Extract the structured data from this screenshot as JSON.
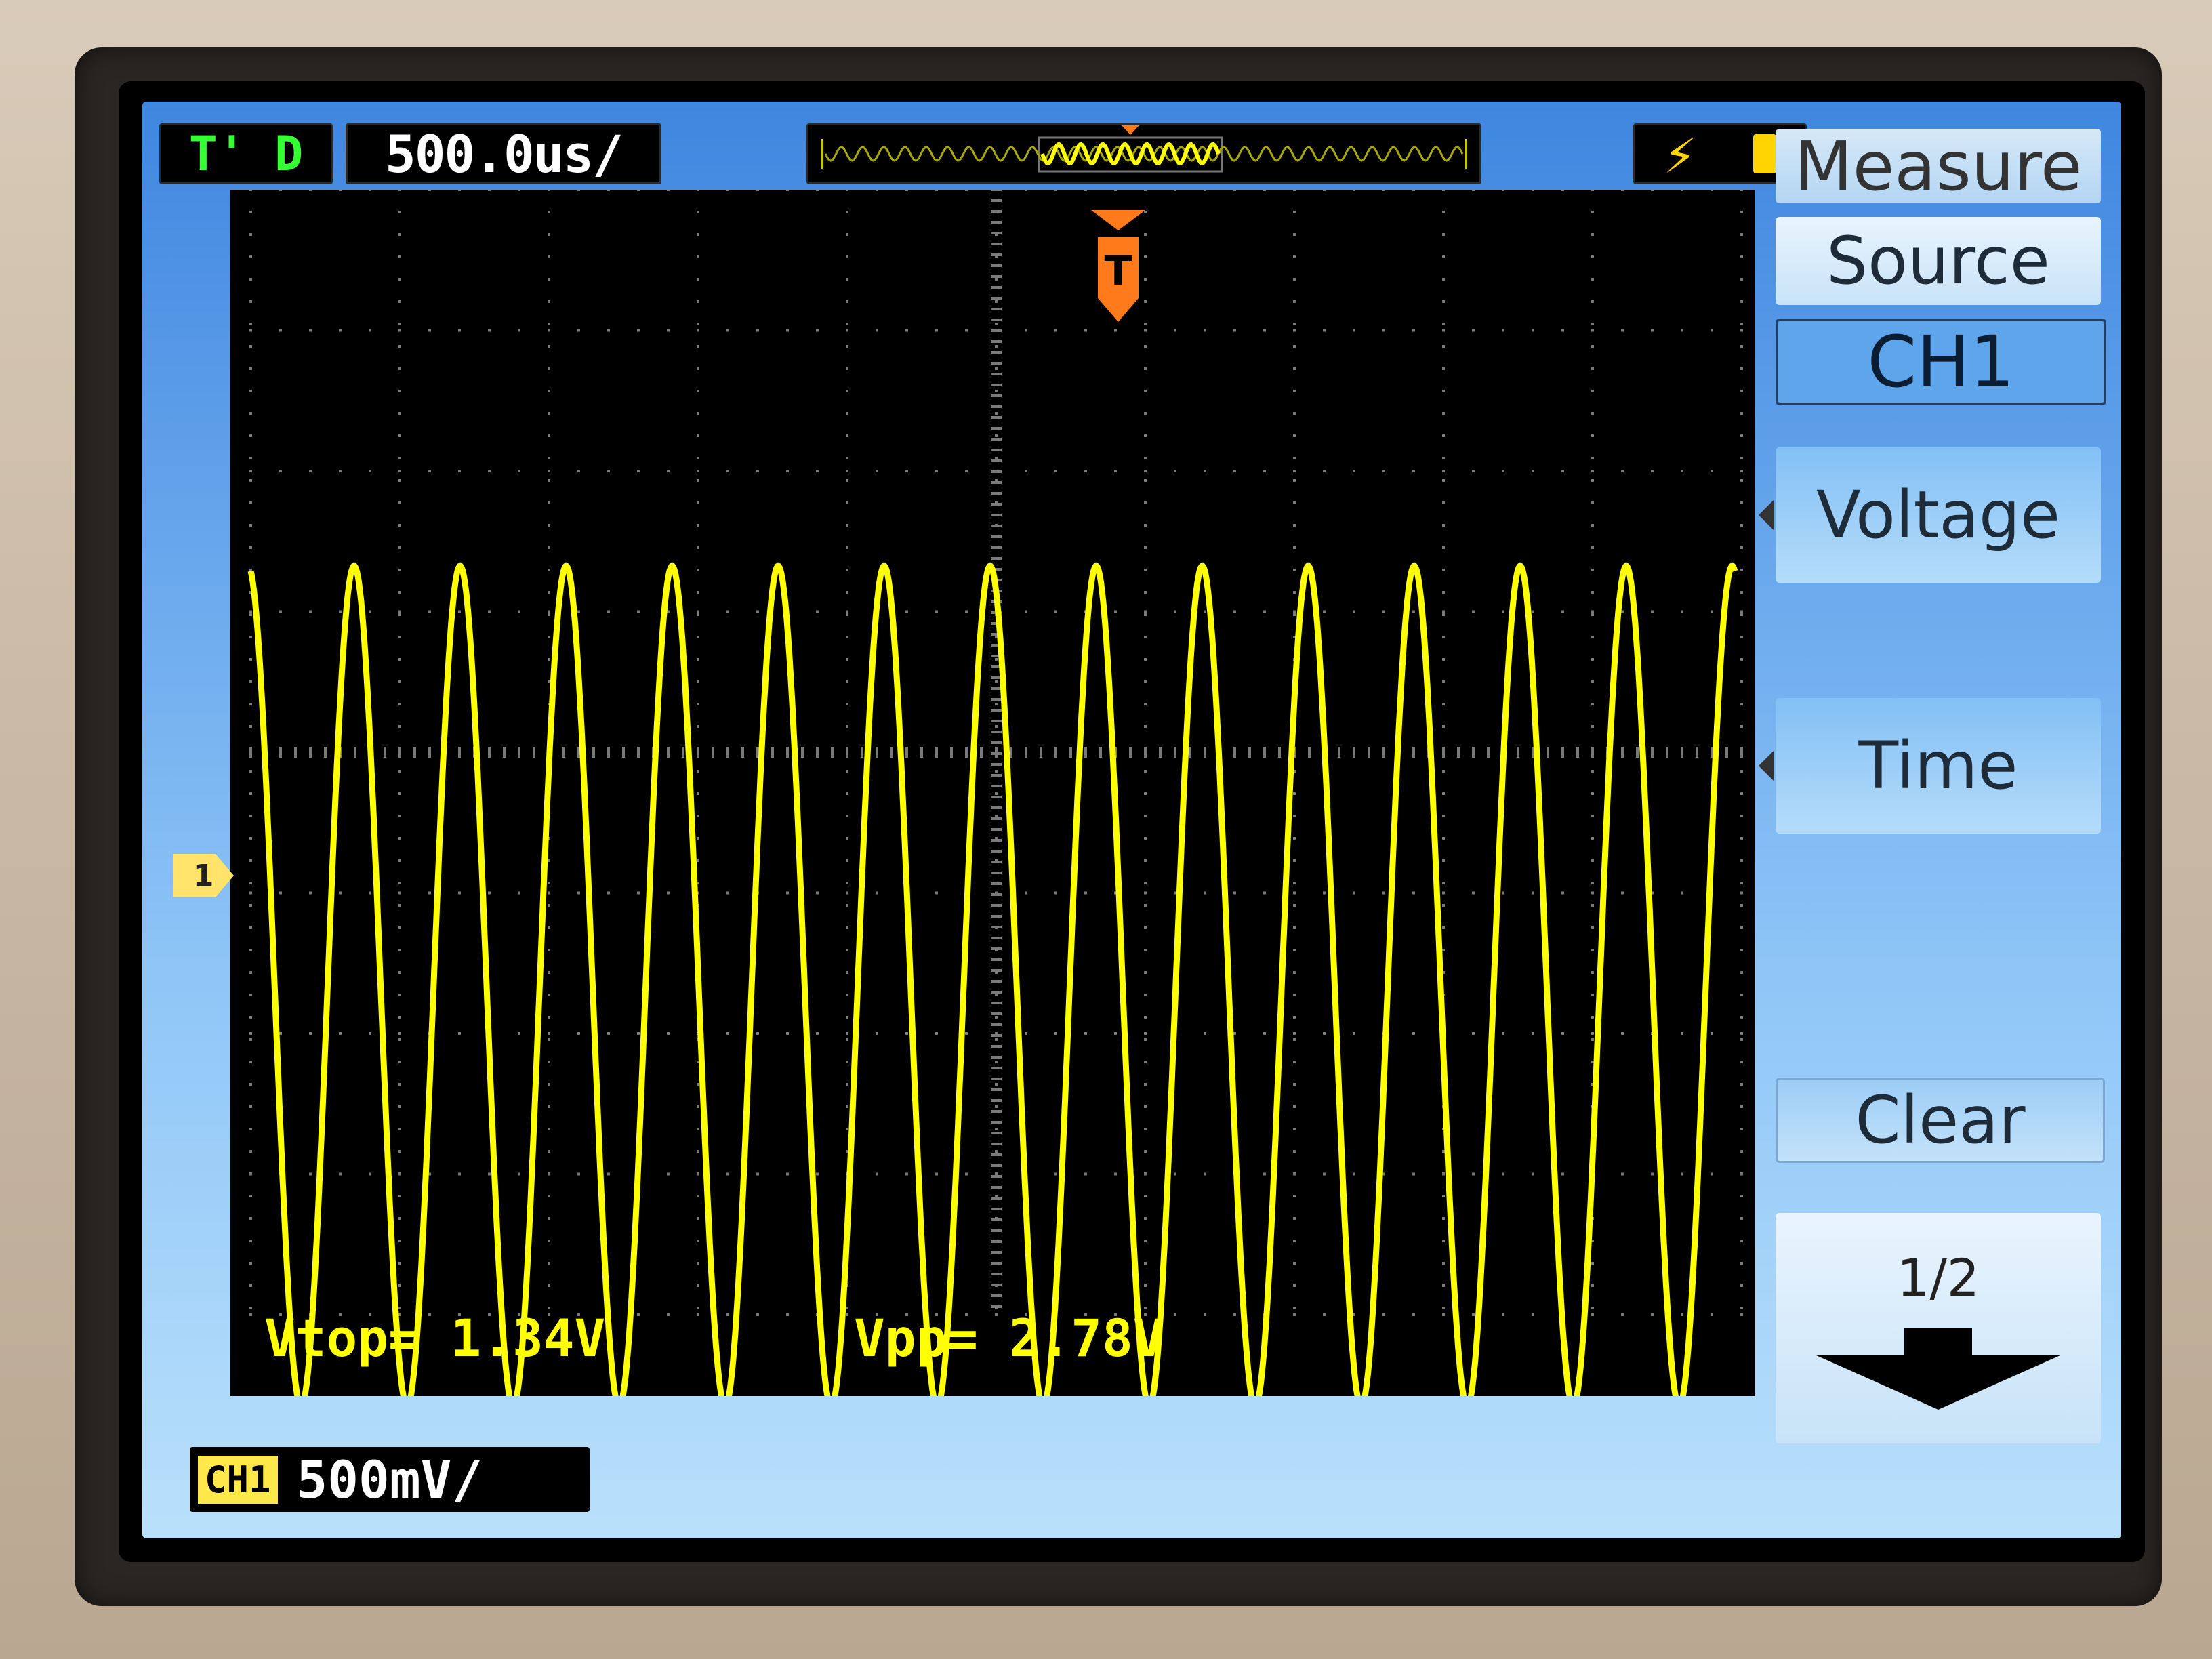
{
  "status_bar": {
    "run_state": "T' D",
    "timebase": "500.0us/",
    "trigger_icons": [
      "trigger-edge-icon",
      "battery-icon"
    ]
  },
  "measurements": {
    "vtop": "Vtop= 1.34V",
    "vpp": "Vpp= 2.78V"
  },
  "channel": {
    "marker": "1",
    "label": "CH1",
    "scale": "500mV/"
  },
  "menu": {
    "title": "Measure",
    "items": [
      {
        "label": "Source"
      },
      {
        "label": "CH1"
      },
      {
        "label": "Voltage"
      },
      {
        "label": "Time"
      },
      {
        "label": "Clear"
      }
    ],
    "page": "1/2"
  },
  "waveform": {
    "cycles_visible": 14,
    "color": "#ffff00"
  },
  "colors": {
    "frame": "#8ec5f7",
    "trace": "#ffff00",
    "trigger": "#ff7a1a",
    "run_state": "#33ff33"
  }
}
